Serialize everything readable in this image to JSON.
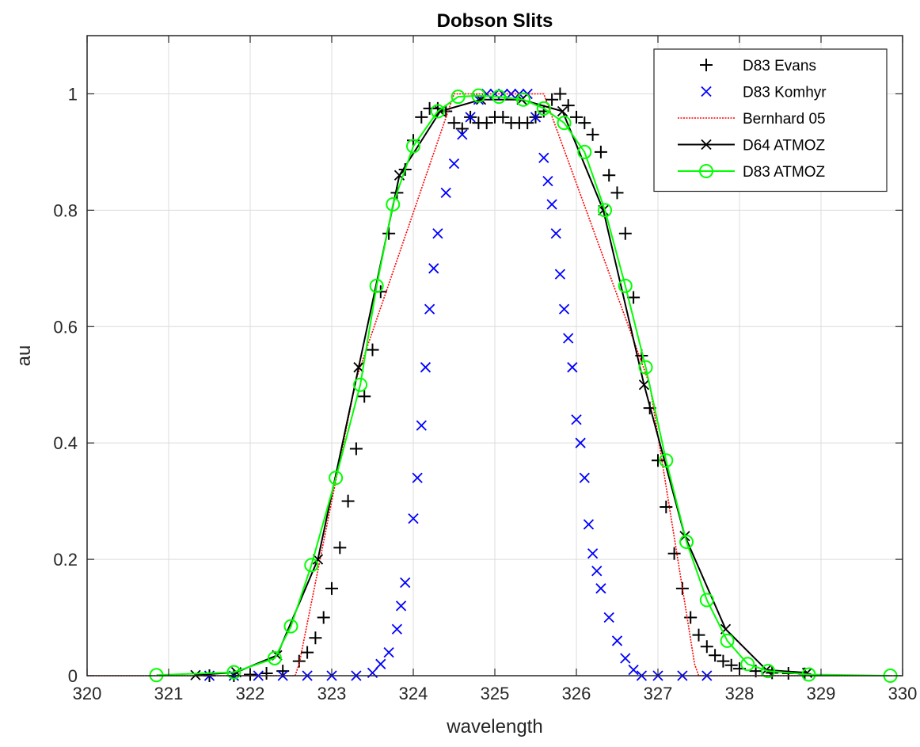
{
  "chart_data": {
    "type": "line",
    "title": "Dobson Slits",
    "xlabel": "wavelength",
    "ylabel": "au",
    "xlim": [
      320,
      330
    ],
    "ylim": [
      0,
      1.1
    ],
    "xticks": [
      "320",
      "321",
      "322",
      "323",
      "324",
      "325",
      "326",
      "327",
      "328",
      "329",
      "330"
    ],
    "yticks": [
      "0",
      "0.2",
      "0.4",
      "0.6",
      "0.8",
      "1"
    ],
    "grid": true,
    "legend_position": "top-right",
    "series": [
      {
        "name": "D83 Evans",
        "color": "#000000",
        "marker": "plus",
        "line": "none",
        "x": [
          321.5,
          321.8,
          322.0,
          322.2,
          322.4,
          322.6,
          322.7,
          322.8,
          322.9,
          323.0,
          323.1,
          323.2,
          323.3,
          323.4,
          323.5,
          323.6,
          323.7,
          323.8,
          323.9,
          324.0,
          324.1,
          324.2,
          324.3,
          324.4,
          324.5,
          324.6,
          324.7,
          324.8,
          324.9,
          325.0,
          325.1,
          325.2,
          325.3,
          325.4,
          325.5,
          325.6,
          325.7,
          325.8,
          325.9,
          326.0,
          326.1,
          326.2,
          326.3,
          326.4,
          326.5,
          326.6,
          326.7,
          326.8,
          326.9,
          327.0,
          327.1,
          327.2,
          327.3,
          327.4,
          327.5,
          327.6,
          327.7,
          327.8,
          327.9,
          328.0,
          328.2,
          328.4,
          328.6,
          328.8
        ],
        "y": [
          0.0,
          0.0,
          0.002,
          0.004,
          0.008,
          0.025,
          0.04,
          0.065,
          0.1,
          0.15,
          0.22,
          0.3,
          0.39,
          0.48,
          0.56,
          0.66,
          0.76,
          0.83,
          0.87,
          0.92,
          0.96,
          0.975,
          0.975,
          0.97,
          0.95,
          0.94,
          0.96,
          0.95,
          0.95,
          0.96,
          0.96,
          0.95,
          0.95,
          0.95,
          0.96,
          0.97,
          0.99,
          1.0,
          0.98,
          0.96,
          0.95,
          0.93,
          0.9,
          0.86,
          0.83,
          0.76,
          0.65,
          0.55,
          0.46,
          0.37,
          0.29,
          0.21,
          0.15,
          0.1,
          0.07,
          0.05,
          0.035,
          0.025,
          0.018,
          0.012,
          0.008,
          0.005,
          0.004,
          0.003
        ]
      },
      {
        "name": "D83 Komhyr",
        "color": "#0000ff",
        "marker": "x",
        "line": "none",
        "x": [
          321.5,
          321.8,
          322.1,
          322.4,
          322.7,
          323.0,
          323.3,
          323.5,
          323.6,
          323.7,
          323.8,
          323.85,
          323.9,
          324.0,
          324.05,
          324.1,
          324.15,
          324.2,
          324.25,
          324.3,
          324.4,
          324.5,
          324.6,
          324.7,
          324.8,
          324.9,
          325.0,
          325.1,
          325.2,
          325.3,
          325.4,
          325.5,
          325.6,
          325.65,
          325.7,
          325.75,
          325.8,
          325.85,
          325.9,
          325.95,
          326.0,
          326.05,
          326.1,
          326.15,
          326.2,
          326.25,
          326.3,
          326.4,
          326.5,
          326.6,
          326.7,
          326.8,
          327.0,
          327.3,
          327.6
        ],
        "y": [
          0.0,
          0.0,
          0.0,
          0.0,
          0.0,
          0.0,
          0.0,
          0.005,
          0.02,
          0.04,
          0.08,
          0.12,
          0.16,
          0.27,
          0.34,
          0.43,
          0.53,
          0.63,
          0.7,
          0.76,
          0.83,
          0.88,
          0.93,
          0.96,
          0.99,
          1.0,
          1.0,
          1.0,
          1.0,
          1.0,
          1.0,
          0.96,
          0.89,
          0.85,
          0.81,
          0.76,
          0.69,
          0.63,
          0.58,
          0.53,
          0.44,
          0.4,
          0.34,
          0.26,
          0.21,
          0.18,
          0.15,
          0.1,
          0.06,
          0.03,
          0.01,
          0.0,
          0.0,
          0.0,
          0.0
        ]
      },
      {
        "name": "Bernhard 05",
        "color": "#ff0000",
        "marker": "none",
        "line": "dotted",
        "x": [
          320.0,
          322.55,
          322.6,
          323.3,
          324.5,
          325.6,
          326.9,
          327.45,
          327.5,
          330.0
        ],
        "y": [
          0.0,
          0.0,
          0.02,
          0.51,
          1.0,
          1.0,
          0.5,
          0.02,
          0.0,
          0.0
        ]
      },
      {
        "name": "D64 ATMOZ",
        "color": "#000000",
        "marker": "x",
        "line": "solid",
        "x": [
          321.33,
          321.83,
          322.33,
          322.83,
          323.33,
          323.83,
          324.33,
          324.83,
          325.33,
          325.83,
          326.33,
          326.83,
          327.33,
          327.83,
          328.33,
          328.83
        ],
        "y": [
          0.001,
          0.006,
          0.035,
          0.2,
          0.53,
          0.86,
          0.97,
          0.99,
          0.99,
          0.97,
          0.8,
          0.5,
          0.24,
          0.08,
          0.01,
          0.005
        ]
      },
      {
        "name": "D83 ATMOZ",
        "color": "#00ff00",
        "marker": "circle",
        "line": "solid",
        "x": [
          320.85,
          321.8,
          322.3,
          322.5,
          322.75,
          323.05,
          323.35,
          323.55,
          323.75,
          324.0,
          324.3,
          324.55,
          324.8,
          325.05,
          325.35,
          325.6,
          325.85,
          326.1,
          326.35,
          326.6,
          326.85,
          327.1,
          327.35,
          327.6,
          327.85,
          328.1,
          328.35,
          328.85,
          329.85
        ],
        "y": [
          0.001,
          0.006,
          0.03,
          0.085,
          0.19,
          0.34,
          0.5,
          0.67,
          0.81,
          0.91,
          0.97,
          0.995,
          0.997,
          0.995,
          0.99,
          0.975,
          0.95,
          0.9,
          0.8,
          0.67,
          0.53,
          0.37,
          0.23,
          0.13,
          0.06,
          0.02,
          0.008,
          0.002,
          0.0
        ]
      }
    ]
  }
}
